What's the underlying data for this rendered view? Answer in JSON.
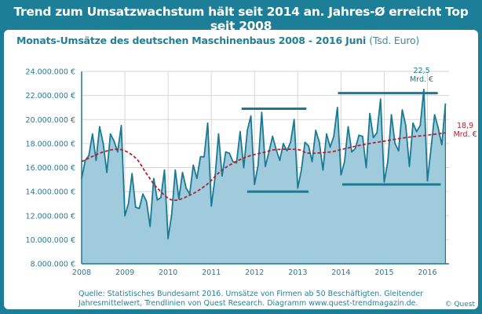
{
  "title": "Trend zum Umsatzwachstum hält seit 2014 an. Jahres-Ø erreicht Top seit 2008",
  "subtitle": "Monats-Umsätze des deutschen Maschinenbaus 2008  - 2016  Juni",
  "subtitle_unit": "(Tsd. Euro)",
  "source_line1": "Quelle: Statistisches Bundesamt 2016. Umsätze von Firmen ab 50 Beschäftigten. Gleitender",
  "source_line2": "Jahresmittelwert, Trendlinien von Quest Research. Diagramm www.quest-trendmagazin.de.",
  "copyright": "© Quest",
  "colors": {
    "frame": "#1d7f97",
    "area": "#9fcbdc",
    "line": "#1a7a93",
    "trend": "#b5202e",
    "trendlines": "#1a7a93"
  },
  "chart_data": {
    "type": "area",
    "title": "Monats-Umsätze des deutschen Maschinenbaus 2008  - 2016  Juni",
    "ylabel": "",
    "xlabel": "",
    "ylim": [
      8000000,
      24000000
    ],
    "xlim": [
      2008,
      2016.5
    ],
    "grid": true,
    "y_ticks": [
      "8.000.000 €",
      "10.000.000 €",
      "12.000.000 €",
      "14.000.000 €",
      "16.000.000 €",
      "18.000.000 €",
      "20.000.000 €",
      "22.000.000 €",
      "24.000.000 €"
    ],
    "y_tick_values": [
      8000000,
      10000000,
      12000000,
      14000000,
      16000000,
      18000000,
      20000000,
      22000000,
      24000000
    ],
    "x_ticks": [
      "2008",
      "2009",
      "2010",
      "2011",
      "2012",
      "2013",
      "2014",
      "2015",
      "2016"
    ],
    "start": "2008-01",
    "end": "2016-06",
    "monthly_values_mio": [
      15.1,
      16.6,
      17.0,
      18.8,
      16.6,
      19.4,
      18.0,
      15.6,
      18.8,
      18.2,
      17.3,
      19.5,
      12.0,
      13.0,
      15.5,
      12.7,
      12.6,
      13.8,
      13.2,
      11.1,
      15.1,
      13.3,
      13.5,
      15.8,
      10.1,
      12.1,
      15.8,
      13.4,
      15.6,
      14.3,
      13.8,
      16.2,
      15.1,
      16.9,
      16.9,
      19.7,
      12.8,
      15.1,
      18.8,
      15.3,
      17.3,
      17.2,
      16.5,
      16.4,
      19.0,
      16.0,
      19.1,
      20.3,
      14.6,
      16.2,
      20.6,
      16.1,
      17.3,
      18.6,
      17.5,
      16.6,
      18.0,
      17.4,
      18.1,
      20.0,
      14.3,
      15.8,
      18.1,
      17.8,
      16.5,
      19.1,
      18.1,
      15.8,
      18.8,
      17.7,
      18.6,
      21.0,
      15.4,
      16.5,
      19.4,
      17.3,
      17.6,
      18.7,
      18.6,
      16.0,
      20.5,
      18.5,
      18.9,
      21.7,
      14.8,
      16.5,
      20.4,
      18.0,
      17.4,
      20.8,
      19.5,
      16.1,
      19.7,
      19.0,
      19.5,
      22.5,
      14.9,
      17.6,
      20.4,
      19.3,
      17.9,
      21.3
    ],
    "moving_average_mio": [
      [
        2008.0,
        16.5
      ],
      [
        2008.5,
        17.3
      ],
      [
        2008.9,
        17.5
      ],
      [
        2009.25,
        16.8
      ],
      [
        2009.5,
        15.5
      ],
      [
        2009.75,
        14.3
      ],
      [
        2010.1,
        13.3
      ],
      [
        2010.5,
        13.7
      ],
      [
        2010.9,
        14.6
      ],
      [
        2011.25,
        15.8
      ],
      [
        2011.75,
        16.8
      ],
      [
        2012.25,
        17.3
      ],
      [
        2012.5,
        17.5
      ],
      [
        2013.0,
        17.5
      ],
      [
        2013.25,
        17.2
      ],
      [
        2013.75,
        17.3
      ],
      [
        2014.0,
        17.5
      ],
      [
        2014.5,
        17.9
      ],
      [
        2015.0,
        18.2
      ],
      [
        2015.5,
        18.5
      ],
      [
        2016.0,
        18.7
      ],
      [
        2016.42,
        18.9
      ]
    ],
    "trend_lines_mio": [
      {
        "x": [
          2011.7,
          2013.2
        ],
        "y": 20.9
      },
      {
        "x": [
          2011.83,
          2013.25
        ],
        "y": 14.0
      },
      {
        "x": [
          2013.93,
          2016.24
        ],
        "y": 22.2
      },
      {
        "x": [
          2014.03,
          2016.31
        ],
        "y": 14.6
      }
    ],
    "annotations": [
      {
        "line1": "22,5",
        "line2": "Mrd. €",
        "x": 2015.92,
        "y": 22.5
      },
      {
        "line1": "18,9",
        "line2": "Mrd. €",
        "x": 2016.42,
        "y": 18.9
      }
    ]
  }
}
